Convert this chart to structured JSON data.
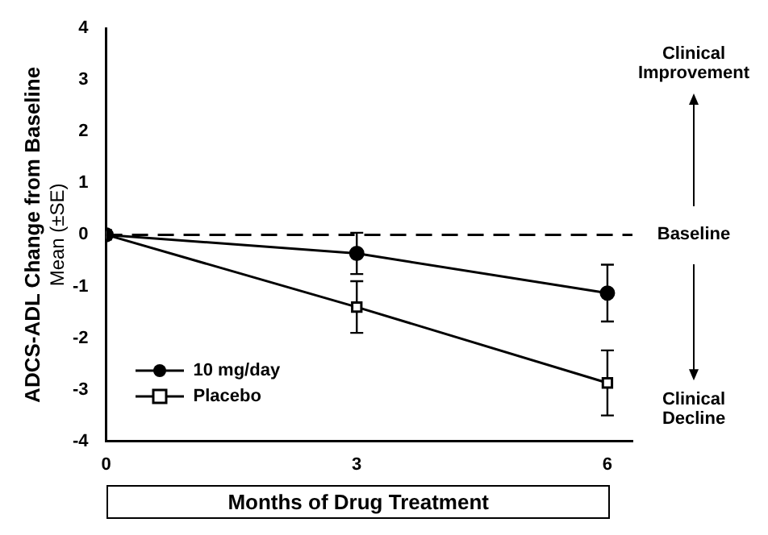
{
  "chart_data": {
    "type": "line",
    "xlabel": "Months of Drug Treatment",
    "ylabel": "ADCS-ADL Change from Baseline\nMean (±SE)",
    "xlim": [
      0,
      6.3
    ],
    "xticks": [
      0,
      3,
      6
    ],
    "ylim": [
      -4,
      4
    ],
    "yticks": [
      -4,
      -3,
      -2,
      -1,
      0,
      1,
      2,
      3,
      4
    ],
    "series": [
      {
        "name": "10 mg/day",
        "color": "#000000",
        "marker": "circle",
        "x": [
          0,
          3,
          6
        ],
        "values": [
          0,
          -0.36,
          -1.13
        ],
        "errors": [
          null,
          0.4,
          0.55
        ]
      },
      {
        "name": "Placebo",
        "color": "#000000",
        "marker": "square",
        "x": [
          0,
          3,
          6
        ],
        "values": [
          0,
          -1.4,
          -2.87
        ],
        "errors": [
          null,
          0.5,
          0.63
        ]
      }
    ],
    "ref_lines": [
      {
        "axis": "y",
        "value": 0,
        "label": "Baseline",
        "line_style": "dashed"
      }
    ],
    "annotations": [
      "Clinical Improvement",
      "Clinical Decline"
    ],
    "legend": "bottom left",
    "grid": false
  }
}
